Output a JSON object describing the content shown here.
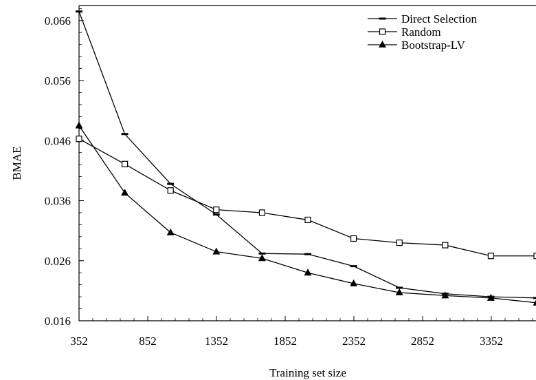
{
  "chart_data": {
    "type": "line",
    "title": "",
    "xlabel": "Training set size",
    "ylabel": "BMAE",
    "x": [
      352,
      685,
      1018,
      1351,
      1684,
      2017,
      2350,
      2683,
      3016,
      3349,
      3682
    ],
    "xlim": [
      352,
      3682
    ],
    "ylim": [
      0.016,
      0.0685
    ],
    "x_ticks": [
      352,
      852,
      1352,
      1852,
      2352,
      2852,
      3352
    ],
    "x_tick_labels": [
      "352",
      "852",
      "1352",
      "1852",
      "2352",
      "2852",
      "3352"
    ],
    "y_ticks": [
      0.016,
      0.026,
      0.036,
      0.046,
      0.056,
      0.066
    ],
    "y_tick_labels": [
      "0.016",
      "0.026",
      "0.036",
      "0.046",
      "0.056",
      "0.066"
    ],
    "grid": false,
    "legend_position": "top-right",
    "series": [
      {
        "name": "Direct Selection",
        "marker": "dash",
        "values": [
          0.0675,
          0.0471,
          0.0388,
          0.0337,
          0.0272,
          0.0271,
          0.0251,
          0.0215,
          0.0205,
          0.02,
          0.0198
        ]
      },
      {
        "name": "Random",
        "marker": "open-square",
        "values": [
          0.0463,
          0.0421,
          0.0377,
          0.0345,
          0.034,
          0.0328,
          0.0297,
          0.029,
          0.0286,
          0.0268,
          0.0268
        ]
      },
      {
        "name": "Bootstrap-LV",
        "marker": "filled-triangle",
        "values": [
          0.0485,
          0.0373,
          0.0307,
          0.0275,
          0.0264,
          0.024,
          0.0222,
          0.0207,
          0.0202,
          0.0198,
          0.019
        ]
      }
    ]
  }
}
